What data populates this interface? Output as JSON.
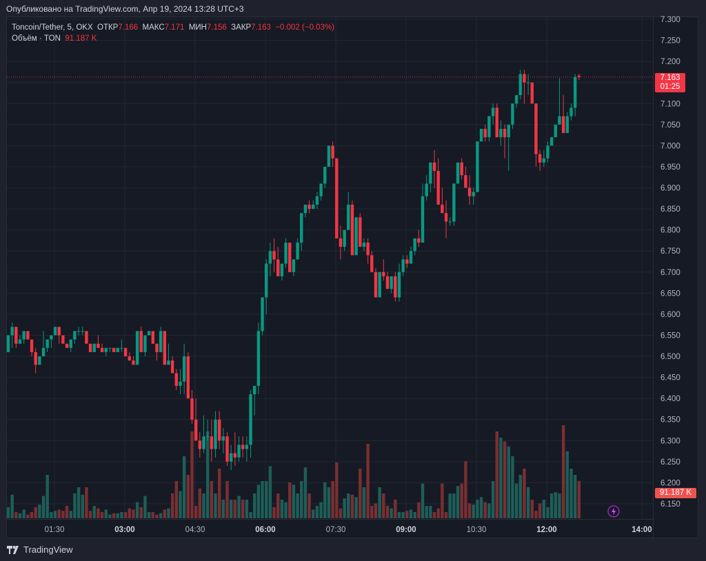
{
  "header": {
    "published": "Опубликовано на TradingView.com, Апр 19, 2024 13:28 UTC+3"
  },
  "legend": {
    "symbol": "Toncoin/Tether, 5, OKX",
    "open_label": "ОТКР",
    "open": "7.166",
    "high_label": "МАКС",
    "high": "7.171",
    "low_label": "МИН",
    "low": "7.156",
    "close_label": "ЗАКР",
    "close": "7.163",
    "change": "−0.002 (−0.03%)",
    "volume_label": "Объём · TON",
    "volume": "91.187 K"
  },
  "price_badge": {
    "price": "7.163",
    "countdown": "01:25"
  },
  "volume_badge": "91.187 K",
  "footer": {
    "brand": "TradingView"
  },
  "colors": {
    "up": "#089981",
    "down": "#f23645",
    "vol_up": "#1e5e58",
    "vol_down": "#7a2f33",
    "background": "#161a24",
    "grid": "#232733"
  },
  "chart_data": {
    "type": "candlestick",
    "title": "Toncoin/Tether, 5, OKX",
    "interval": "5m",
    "xlabel": "",
    "ylabel": "",
    "ylim": [
      6.13,
      7.31
    ],
    "y_ticks": [
      "7.300",
      "7.250",
      "7.200",
      "7.150",
      "7.100",
      "7.050",
      "7.000",
      "6.950",
      "6.900",
      "6.850",
      "6.800",
      "6.750",
      "6.700",
      "6.650",
      "6.600",
      "6.550",
      "6.500",
      "6.450",
      "6.400",
      "6.350",
      "6.300",
      "6.250",
      "6.200",
      "6.150"
    ],
    "x_ticks": [
      {
        "label": "01:30",
        "bold": false
      },
      {
        "label": "03:00",
        "bold": true
      },
      {
        "label": "04:30",
        "bold": false
      },
      {
        "label": "06:00",
        "bold": true
      },
      {
        "label": "07:30",
        "bold": false
      },
      {
        "label": "09:00",
        "bold": true
      },
      {
        "label": "10:30",
        "bold": false
      },
      {
        "label": "12:00",
        "bold": true
      },
      {
        "label": "14:00",
        "bold": true
      }
    ],
    "grid": true,
    "last_price": 7.163,
    "series": [
      {
        "name": "price",
        "ohlc": [
          [
            6.51,
            6.55,
            6.51,
            6.55
          ],
          [
            6.55,
            6.58,
            6.52,
            6.57
          ],
          [
            6.57,
            6.57,
            6.52,
            6.53
          ],
          [
            6.53,
            6.55,
            6.53,
            6.54
          ],
          [
            6.54,
            6.56,
            6.53,
            6.56
          ],
          [
            6.56,
            6.56,
            6.54,
            6.54
          ],
          [
            6.54,
            6.54,
            6.5,
            6.51
          ],
          [
            6.51,
            6.52,
            6.46,
            6.48
          ],
          [
            6.48,
            6.5,
            6.48,
            6.5
          ],
          [
            6.5,
            6.56,
            6.5,
            6.52
          ],
          [
            6.52,
            6.53,
            6.51,
            6.54
          ],
          [
            6.54,
            6.54,
            6.52,
            6.55
          ],
          [
            6.55,
            6.56,
            6.55,
            6.57
          ],
          [
            6.57,
            6.57,
            6.53,
            6.55
          ],
          [
            6.55,
            6.55,
            6.53,
            6.53
          ],
          [
            6.53,
            6.53,
            6.52,
            6.52
          ],
          [
            6.52,
            6.54,
            6.51,
            6.54
          ],
          [
            6.54,
            6.56,
            6.53,
            6.56
          ],
          [
            6.56,
            6.57,
            6.55,
            6.56
          ],
          [
            6.56,
            6.57,
            6.55,
            6.56
          ],
          [
            6.56,
            6.56,
            6.53,
            6.53
          ],
          [
            6.53,
            6.53,
            6.51,
            6.51
          ],
          [
            6.51,
            6.53,
            6.51,
            6.53
          ],
          [
            6.53,
            6.55,
            6.53,
            6.52
          ],
          [
            6.52,
            6.53,
            6.51,
            6.51
          ],
          [
            6.51,
            6.52,
            6.5,
            6.52
          ],
          [
            6.52,
            6.52,
            6.51,
            6.52
          ],
          [
            6.52,
            6.52,
            6.51,
            6.51
          ],
          [
            6.51,
            6.52,
            6.51,
            6.52
          ],
          [
            6.52,
            6.54,
            6.51,
            6.52
          ],
          [
            6.52,
            6.52,
            6.5,
            6.5
          ],
          [
            6.5,
            6.51,
            6.5,
            6.49
          ],
          [
            6.49,
            6.5,
            6.48,
            6.48
          ],
          [
            6.48,
            6.56,
            6.48,
            6.56
          ],
          [
            6.56,
            6.57,
            6.52,
            6.51
          ],
          [
            6.51,
            6.55,
            6.5,
            6.55
          ],
          [
            6.55,
            6.56,
            6.55,
            6.56
          ],
          [
            6.56,
            6.56,
            6.53,
            6.53
          ],
          [
            6.53,
            6.53,
            6.49,
            6.51
          ],
          [
            6.51,
            6.57,
            6.51,
            6.56
          ],
          [
            6.56,
            6.56,
            6.48,
            6.48
          ],
          [
            6.48,
            6.53,
            6.48,
            6.49
          ],
          [
            6.49,
            6.5,
            6.46,
            6.46
          ],
          [
            6.46,
            6.47,
            6.42,
            6.43
          ],
          [
            6.43,
            6.47,
            6.41,
            6.44
          ],
          [
            6.44,
            6.53,
            6.41,
            6.5
          ],
          [
            6.5,
            6.51,
            6.4,
            6.4
          ],
          [
            6.4,
            6.42,
            6.34,
            6.35
          ],
          [
            6.35,
            6.4,
            6.3,
            6.3
          ],
          [
            6.3,
            6.32,
            6.26,
            6.28
          ],
          [
            6.28,
            6.36,
            6.27,
            6.31
          ],
          [
            6.31,
            6.35,
            6.3,
            6.31
          ],
          [
            6.31,
            6.35,
            6.25,
            6.28
          ],
          [
            6.28,
            6.37,
            6.26,
            6.35
          ],
          [
            6.35,
            6.37,
            6.28,
            6.3
          ],
          [
            6.3,
            6.33,
            6.27,
            6.31
          ],
          [
            6.31,
            6.32,
            6.24,
            6.25
          ],
          [
            6.25,
            6.29,
            6.23,
            6.27
          ],
          [
            6.27,
            6.32,
            6.24,
            6.26
          ],
          [
            6.26,
            6.31,
            6.25,
            6.29
          ],
          [
            6.29,
            6.31,
            6.26,
            6.28
          ],
          [
            6.28,
            6.31,
            6.25,
            6.29
          ],
          [
            6.29,
            6.42,
            6.26,
            6.41
          ],
          [
            6.41,
            6.43,
            6.36,
            6.43
          ],
          [
            6.43,
            6.58,
            6.41,
            6.56
          ],
          [
            6.56,
            6.62,
            6.55,
            6.64
          ],
          [
            6.64,
            6.73,
            6.6,
            6.72
          ],
          [
            6.72,
            6.77,
            6.69,
            6.75
          ],
          [
            6.75,
            6.78,
            6.7,
            6.73
          ],
          [
            6.73,
            6.76,
            6.69,
            6.69
          ],
          [
            6.69,
            6.72,
            6.68,
            6.72
          ],
          [
            6.72,
            6.78,
            6.71,
            6.77
          ],
          [
            6.77,
            6.76,
            6.7,
            6.7
          ],
          [
            6.7,
            6.73,
            6.69,
            6.73
          ],
          [
            6.73,
            6.78,
            6.74,
            6.77
          ],
          [
            6.77,
            6.83,
            6.75,
            6.84
          ],
          [
            6.84,
            6.86,
            6.83,
            6.86
          ],
          [
            6.86,
            6.87,
            6.84,
            6.85
          ],
          [
            6.85,
            6.87,
            6.85,
            6.86
          ],
          [
            6.86,
            6.89,
            6.85,
            6.88
          ],
          [
            6.88,
            6.91,
            6.87,
            6.91
          ],
          [
            6.91,
            6.95,
            6.9,
            6.95
          ],
          [
            6.95,
            7.0,
            6.95,
            7.0
          ],
          [
            7.0,
            7.01,
            6.95,
            6.97
          ],
          [
            6.97,
            6.97,
            6.78,
            6.78
          ],
          [
            6.78,
            6.81,
            6.73,
            6.76
          ],
          [
            6.76,
            6.79,
            6.75,
            6.8
          ],
          [
            6.8,
            6.89,
            6.8,
            6.86
          ],
          [
            6.86,
            6.87,
            6.74,
            6.74
          ],
          [
            6.74,
            6.82,
            6.74,
            6.83
          ],
          [
            6.83,
            6.84,
            6.76,
            6.76
          ],
          [
            6.76,
            6.78,
            6.75,
            6.77
          ],
          [
            6.77,
            6.78,
            6.72,
            6.74
          ],
          [
            6.74,
            6.75,
            6.7,
            6.7
          ],
          [
            6.7,
            6.71,
            6.64,
            6.64
          ],
          [
            6.64,
            6.7,
            6.64,
            6.7
          ],
          [
            6.7,
            6.73,
            6.68,
            6.69
          ],
          [
            6.69,
            6.7,
            6.66,
            6.66
          ],
          [
            6.66,
            6.69,
            6.65,
            6.69
          ],
          [
            6.69,
            6.7,
            6.63,
            6.64
          ],
          [
            6.64,
            6.72,
            6.63,
            6.7
          ],
          [
            6.7,
            6.74,
            6.69,
            6.73
          ],
          [
            6.73,
            6.74,
            6.71,
            6.72
          ],
          [
            6.72,
            6.76,
            6.72,
            6.75
          ],
          [
            6.75,
            6.78,
            6.74,
            6.78
          ],
          [
            6.78,
            6.8,
            6.76,
            6.77
          ],
          [
            6.77,
            6.91,
            6.77,
            6.88
          ],
          [
            6.88,
            6.93,
            6.87,
            6.91
          ],
          [
            6.91,
            6.96,
            6.89,
            6.96
          ],
          [
            6.96,
            6.99,
            6.9,
            6.94
          ],
          [
            6.94,
            6.97,
            6.86,
            6.86
          ],
          [
            6.86,
            6.9,
            6.84,
            6.84
          ],
          [
            6.84,
            6.87,
            6.78,
            6.82
          ],
          [
            6.82,
            6.83,
            6.81,
            6.82
          ],
          [
            6.82,
            6.91,
            6.81,
            6.91
          ],
          [
            6.91,
            6.96,
            6.91,
            6.96
          ],
          [
            6.96,
            6.97,
            6.92,
            6.93
          ],
          [
            6.93,
            6.95,
            6.9,
            6.9
          ],
          [
            6.9,
            6.93,
            6.86,
            6.88
          ],
          [
            6.88,
            6.9,
            6.86,
            6.89
          ],
          [
            6.89,
            7.01,
            6.89,
            7.01
          ],
          [
            7.01,
            7.04,
            7.01,
            7.04
          ],
          [
            7.04,
            7.05,
            7.01,
            7.02
          ],
          [
            7.02,
            7.06,
            7.01,
            7.07
          ],
          [
            7.07,
            7.1,
            7.05,
            7.09
          ],
          [
            7.09,
            7.1,
            7.02,
            7.02
          ],
          [
            7.02,
            7.06,
            7.0,
            7.04
          ],
          [
            7.04,
            7.05,
            6.97,
            7.02
          ],
          [
            7.02,
            7.05,
            6.94,
            7.05
          ],
          [
            7.05,
            7.08,
            7.04,
            7.1
          ],
          [
            7.1,
            7.12,
            7.09,
            7.12
          ],
          [
            7.12,
            7.18,
            7.11,
            7.17
          ],
          [
            7.17,
            7.18,
            7.1,
            7.15
          ],
          [
            7.15,
            7.17,
            7.12,
            7.15
          ],
          [
            7.15,
            7.15,
            7.1,
            7.1
          ],
          [
            7.1,
            7.1,
            6.95,
            6.98
          ],
          [
            6.98,
            6.99,
            6.94,
            6.96
          ],
          [
            6.96,
            6.99,
            6.95,
            6.97
          ],
          [
            6.97,
            7.01,
            6.96,
            7.0
          ],
          [
            7.0,
            7.02,
            7.0,
            7.02
          ],
          [
            7.02,
            7.05,
            7.02,
            7.05
          ],
          [
            7.05,
            7.16,
            7.05,
            7.07
          ],
          [
            7.07,
            7.12,
            7.04,
            7.03
          ],
          [
            7.03,
            7.08,
            7.03,
            7.07
          ],
          [
            7.07,
            7.1,
            7.06,
            7.09
          ],
          [
            7.09,
            7.17,
            7.07,
            7.163
          ],
          [
            7.166,
            7.171,
            7.156,
            7.163
          ]
        ]
      },
      {
        "name": "volume",
        "values": []
      }
    ]
  }
}
